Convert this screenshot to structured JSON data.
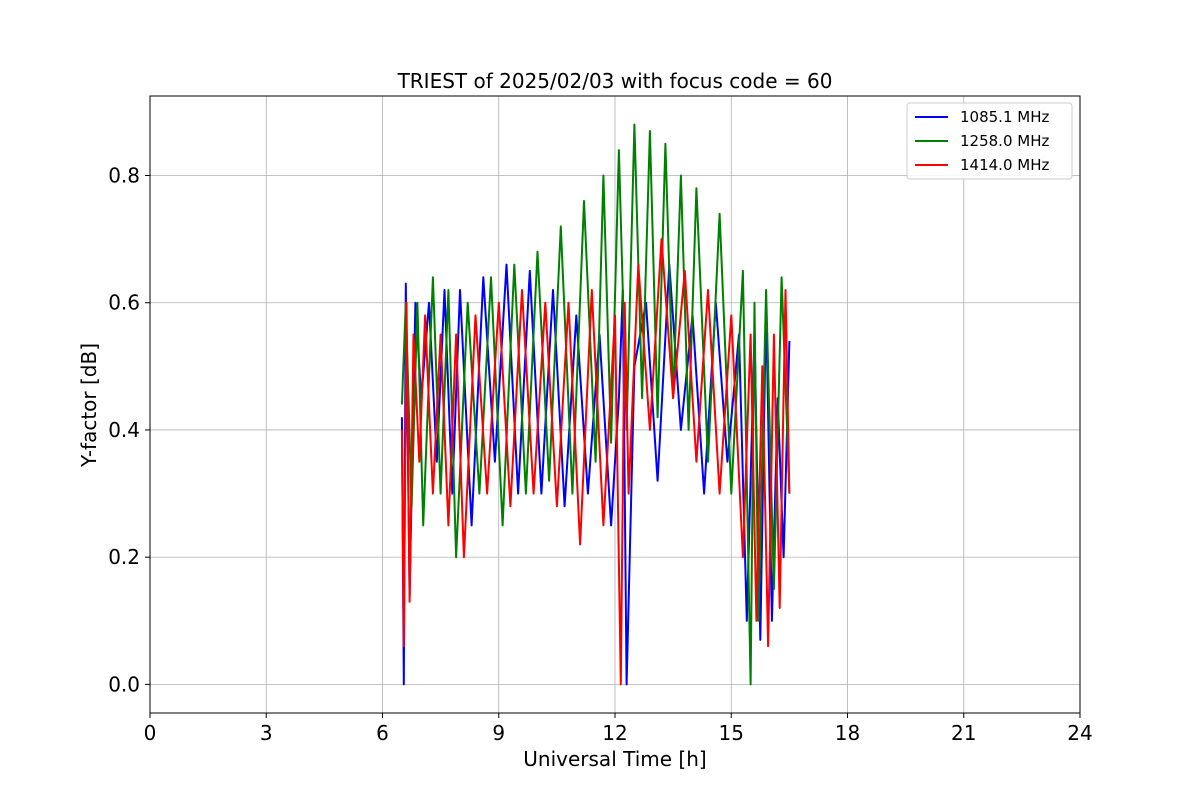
{
  "chart_data": {
    "type": "line",
    "title": "TRIEST of 2025/02/03 with focus code = 60",
    "xlabel": "Universal Time [h]",
    "ylabel": "Y-factor [dB]",
    "xlim": [
      0,
      24
    ],
    "ylim": [
      -0.045,
      0.925
    ],
    "xticks": [
      "0",
      "3",
      "6",
      "9",
      "12",
      "15",
      "18",
      "21",
      "24"
    ],
    "yticks": [
      "0.0",
      "0.2",
      "0.4",
      "0.6",
      "0.8"
    ],
    "grid": true,
    "legend_position": "top-right",
    "series": [
      {
        "name": "1085.1 MHz",
        "color": "#0000ff",
        "x": [
          6.5,
          6.55,
          6.6,
          6.7,
          6.85,
          7.0,
          7.2,
          7.4,
          7.6,
          7.8,
          8.0,
          8.3,
          8.6,
          8.9,
          9.2,
          9.5,
          9.8,
          10.1,
          10.4,
          10.7,
          11.0,
          11.3,
          11.6,
          11.9,
          12.1,
          12.2,
          12.3,
          12.5,
          12.8,
          13.1,
          13.4,
          13.7,
          14.0,
          14.3,
          14.6,
          14.9,
          15.2,
          15.4,
          15.6,
          15.75,
          15.9,
          16.05,
          16.2,
          16.35,
          16.5
        ],
        "y": [
          0.42,
          0.0,
          0.63,
          0.14,
          0.6,
          0.45,
          0.6,
          0.35,
          0.62,
          0.3,
          0.62,
          0.25,
          0.64,
          0.35,
          0.66,
          0.3,
          0.65,
          0.3,
          0.62,
          0.28,
          0.58,
          0.3,
          0.55,
          0.25,
          0.45,
          0.62,
          0.0,
          0.5,
          0.6,
          0.32,
          0.66,
          0.4,
          0.58,
          0.3,
          0.6,
          0.35,
          0.55,
          0.1,
          0.55,
          0.07,
          0.6,
          0.1,
          0.45,
          0.2,
          0.54
        ]
      },
      {
        "name": "1258.0 MHz",
        "color": "#008000",
        "x": [
          6.5,
          6.6,
          6.75,
          6.9,
          7.05,
          7.3,
          7.5,
          7.7,
          7.9,
          8.2,
          8.5,
          8.8,
          9.1,
          9.4,
          9.7,
          10.0,
          10.3,
          10.6,
          10.9,
          11.2,
          11.5,
          11.7,
          11.9,
          12.1,
          12.3,
          12.5,
          12.7,
          12.9,
          13.1,
          13.3,
          13.5,
          13.7,
          13.9,
          14.1,
          14.4,
          14.7,
          15.0,
          15.3,
          15.5,
          15.6,
          15.7,
          15.9,
          16.1,
          16.3,
          16.5
        ],
        "y": [
          0.44,
          0.6,
          0.28,
          0.6,
          0.25,
          0.64,
          0.3,
          0.62,
          0.2,
          0.6,
          0.3,
          0.64,
          0.25,
          0.66,
          0.3,
          0.68,
          0.32,
          0.72,
          0.3,
          0.76,
          0.35,
          0.8,
          0.38,
          0.84,
          0.4,
          0.88,
          0.45,
          0.87,
          0.42,
          0.85,
          0.45,
          0.8,
          0.4,
          0.78,
          0.35,
          0.74,
          0.3,
          0.65,
          0.0,
          0.6,
          0.1,
          0.62,
          0.15,
          0.64,
          0.3
        ]
      },
      {
        "name": "1414.0 MHz",
        "color": "#ff0000",
        "x": [
          6.5,
          6.55,
          6.62,
          6.7,
          6.8,
          6.95,
          7.1,
          7.3,
          7.5,
          7.7,
          7.9,
          8.1,
          8.4,
          8.7,
          9.0,
          9.3,
          9.6,
          9.9,
          10.2,
          10.5,
          10.8,
          11.1,
          11.4,
          11.7,
          12.0,
          12.15,
          12.25,
          12.35,
          12.6,
          12.9,
          13.2,
          13.5,
          13.8,
          14.1,
          14.4,
          14.7,
          15.0,
          15.3,
          15.5,
          15.65,
          15.8,
          15.95,
          16.1,
          16.25,
          16.4,
          16.5
        ],
        "y": [
          0.4,
          0.06,
          0.6,
          0.13,
          0.55,
          0.35,
          0.58,
          0.3,
          0.55,
          0.25,
          0.55,
          0.2,
          0.58,
          0.3,
          0.6,
          0.28,
          0.62,
          0.3,
          0.6,
          0.28,
          0.6,
          0.22,
          0.62,
          0.25,
          0.58,
          0.0,
          0.6,
          0.3,
          0.66,
          0.4,
          0.7,
          0.45,
          0.65,
          0.35,
          0.62,
          0.3,
          0.58,
          0.2,
          0.55,
          0.1,
          0.5,
          0.06,
          0.55,
          0.12,
          0.62,
          0.3
        ]
      }
    ]
  }
}
